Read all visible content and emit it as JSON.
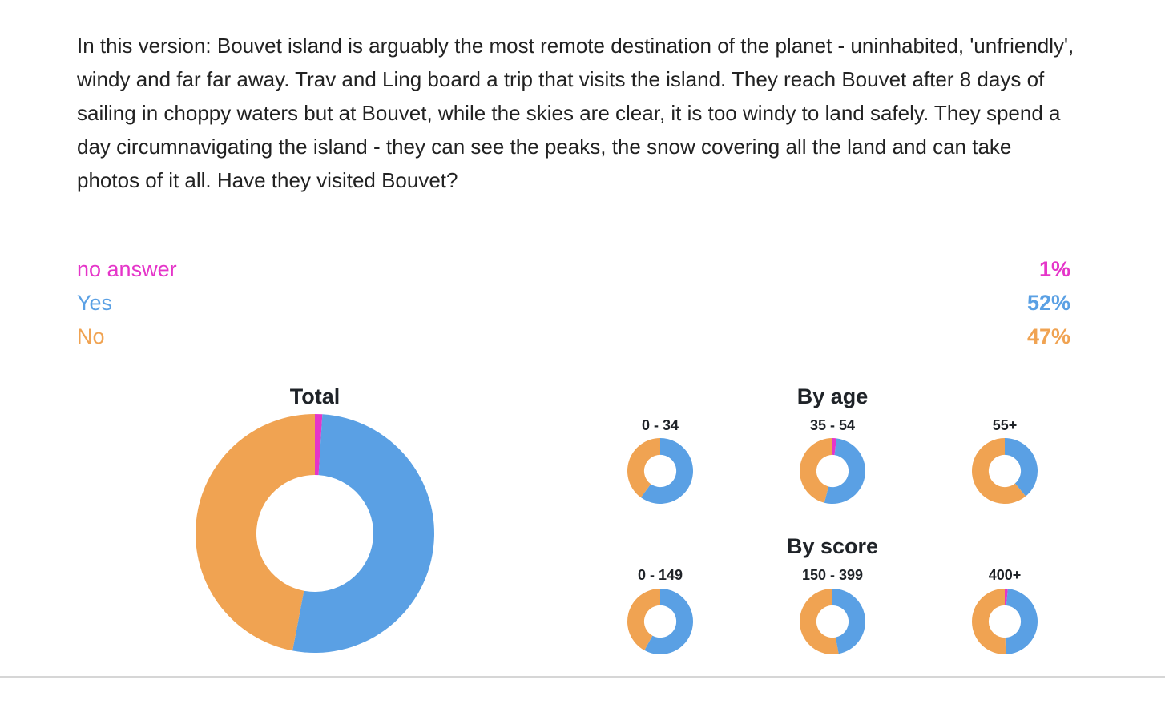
{
  "question": "In this version: Bouvet island is arguably the most remote destination of the planet - uninhabited, 'unfriendly', windy and far far away. Trav and Ling board a trip that visits the island. They reach Bouvet after 8 days of sailing in choppy waters but at Bouvet, while the skies are clear, it is too windy to land safely. They spend a day circumnavigating the island - they can see the peaks, the snow covering all the land and can take photos of it all. Have they visited Bouvet?",
  "legend": [
    {
      "label": "no answer",
      "pct": "1%",
      "color": "#e535c9"
    },
    {
      "label": "Yes",
      "pct": "52%",
      "color": "#5aa0e4"
    },
    {
      "label": "No",
      "pct": "47%",
      "color": "#f0a352"
    }
  ],
  "titles": {
    "total": "Total",
    "by_age": "By age",
    "by_score": "By score"
  },
  "chart_data": [
    {
      "type": "pie",
      "title": "Total",
      "categories": [
        "no answer",
        "Yes",
        "No"
      ],
      "values": [
        1,
        52,
        47
      ]
    },
    {
      "type": "pie",
      "group": "By age",
      "title": "0 - 34",
      "categories": [
        "no answer",
        "Yes",
        "No"
      ],
      "values": [
        0,
        60,
        40
      ]
    },
    {
      "type": "pie",
      "group": "By age",
      "title": "35 - 54",
      "categories": [
        "no answer",
        "Yes",
        "No"
      ],
      "values": [
        2,
        52,
        46
      ]
    },
    {
      "type": "pie",
      "group": "By age",
      "title": "55+",
      "categories": [
        "no answer",
        "Yes",
        "No"
      ],
      "values": [
        0,
        39,
        61
      ]
    },
    {
      "type": "pie",
      "group": "By score",
      "title": "0 - 149",
      "categories": [
        "no answer",
        "Yes",
        "No"
      ],
      "values": [
        0,
        58,
        42
      ]
    },
    {
      "type": "pie",
      "group": "By score",
      "title": "150 - 399",
      "categories": [
        "no answer",
        "Yes",
        "No"
      ],
      "values": [
        0,
        47,
        53
      ]
    },
    {
      "type": "pie",
      "group": "By score",
      "title": "400+",
      "categories": [
        "no answer",
        "Yes",
        "No"
      ],
      "values": [
        1.5,
        48,
        50.5
      ]
    }
  ]
}
